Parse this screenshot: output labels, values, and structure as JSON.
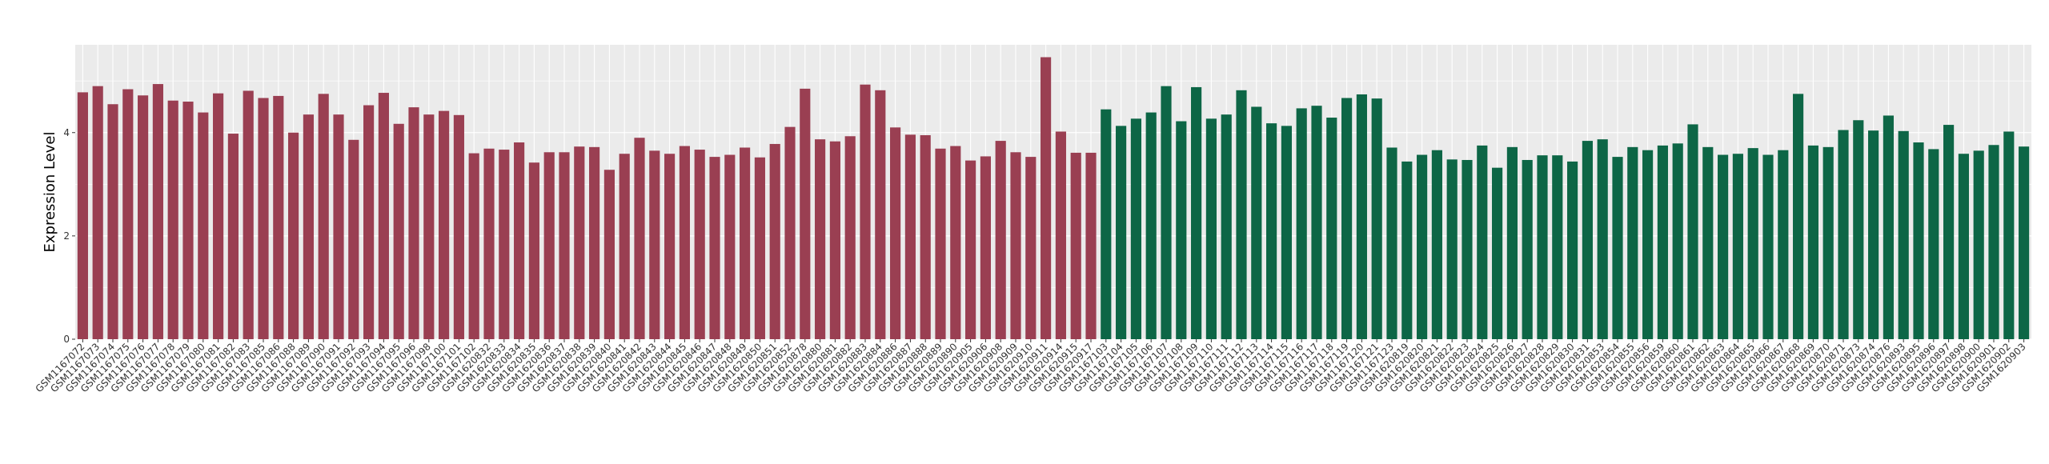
{
  "chart_data": {
    "type": "bar",
    "ylabel": "Expression Level",
    "ylim": [
      0,
      5.7
    ],
    "y_ticks": [
      0,
      2,
      4
    ],
    "y_tick_labels": [
      "0",
      "2",
      "4"
    ],
    "grid": true,
    "legend": "none",
    "panel_background": "#ebebeb",
    "gridline_color": "#ffffff",
    "series": [
      {
        "color": "#9a3f52",
        "categories": [
          "GSM1167072",
          "GSM1167073",
          "GSM1167074",
          "GSM1167075",
          "GSM1167076",
          "GSM1167077",
          "GSM1167078",
          "GSM1167079",
          "GSM1167080",
          "GSM1167081",
          "GSM1167082",
          "GSM1167083",
          "GSM1167085",
          "GSM1167086",
          "GSM1167088",
          "GSM1167089",
          "GSM1167090",
          "GSM1167091",
          "GSM1167092",
          "GSM1167093",
          "GSM1167094",
          "GSM1167095",
          "GSM1167096",
          "GSM1167098",
          "GSM1167100",
          "GSM1167101",
          "GSM1167102",
          "GSM1620832",
          "GSM1620833",
          "GSM1620834",
          "GSM1620835",
          "GSM1620836",
          "GSM1620837",
          "GSM1620838",
          "GSM1620839",
          "GSM1620840",
          "GSM1620841",
          "GSM1620842",
          "GSM1620843",
          "GSM1620844",
          "GSM1620845",
          "GSM1620846",
          "GSM1620847",
          "GSM1620848",
          "GSM1620849",
          "GSM1620850",
          "GSM1620851",
          "GSM1620852",
          "GSM1620878",
          "GSM1620880",
          "GSM1620881",
          "GSM1620882",
          "GSM1620883",
          "GSM1620884",
          "GSM1620886",
          "GSM1620887",
          "GSM1620888",
          "GSM1620889",
          "GSM1620890",
          "GSM1620905",
          "GSM1620906",
          "GSM1620908",
          "GSM1620909",
          "GSM1620910",
          "GSM1620911",
          "GSM1620914",
          "GSM1620915",
          "GSM1620917"
        ],
        "values": [
          4.78,
          4.9,
          4.55,
          4.84,
          4.72,
          4.94,
          4.62,
          4.6,
          4.39,
          4.76,
          3.98,
          4.81,
          4.67,
          4.71,
          4.0,
          4.35,
          4.75,
          4.35,
          3.86,
          4.53,
          4.77,
          4.17,
          4.49,
          4.35,
          4.42,
          4.34,
          3.6,
          3.69,
          3.67,
          3.81,
          3.42,
          3.62,
          3.62,
          3.73,
          3.72,
          3.28,
          3.59,
          3.9,
          3.65,
          3.59,
          3.74,
          3.67,
          3.53,
          3.57,
          3.71,
          3.52,
          3.78,
          4.11,
          4.85,
          3.87,
          3.83,
          3.93,
          4.93,
          4.82,
          4.1,
          3.96,
          3.95,
          3.69,
          3.74,
          3.46,
          3.54,
          3.84,
          3.62,
          3.53,
          5.46,
          4.02,
          3.61,
          3.61
        ]
      },
      {
        "color": "#0d6646",
        "categories": [
          "GSM1167103",
          "GSM1167104",
          "GSM1167105",
          "GSM1167106",
          "GSM1167107",
          "GSM1167108",
          "GSM1167109",
          "GSM1167110",
          "GSM1167111",
          "GSM1167112",
          "GSM1167113",
          "GSM1167114",
          "GSM1167115",
          "GSM1167116",
          "GSM1167117",
          "GSM1167118",
          "GSM1167119",
          "GSM1167120",
          "GSM1167121",
          "GSM1167123",
          "GSM1620819",
          "GSM1620820",
          "GSM1620821",
          "GSM1620822",
          "GSM1620823",
          "GSM1620824",
          "GSM1620825",
          "GSM1620826",
          "GSM1620827",
          "GSM1620828",
          "GSM1620829",
          "GSM1620830",
          "GSM1620831",
          "GSM1620853",
          "GSM1620854",
          "GSM1620855",
          "GSM1620856",
          "GSM1620859",
          "GSM1620860",
          "GSM1620861",
          "GSM1620862",
          "GSM1620863",
          "GSM1620864",
          "GSM1620865",
          "GSM1620866",
          "GSM1620867",
          "GSM1620868",
          "GSM1620869",
          "GSM1620870",
          "GSM1620871",
          "GSM1620873",
          "GSM1620874",
          "GSM1620876",
          "GSM1620893",
          "GSM1620895",
          "GSM1620896",
          "GSM1620897",
          "GSM1620898",
          "GSM1620900",
          "GSM1620901",
          "GSM1620902",
          "GSM1620903"
        ],
        "values": [
          4.45,
          4.13,
          4.27,
          4.39,
          4.9,
          4.22,
          4.88,
          4.27,
          4.35,
          4.82,
          4.5,
          4.18,
          4.13,
          4.47,
          4.52,
          4.29,
          4.67,
          4.74,
          4.66,
          3.71,
          3.44,
          3.57,
          3.66,
          3.48,
          3.47,
          3.75,
          3.32,
          3.72,
          3.47,
          3.56,
          3.56,
          3.44,
          3.84,
          3.87,
          3.53,
          3.72,
          3.66,
          3.75,
          3.79,
          4.16,
          3.72,
          3.57,
          3.59,
          3.7,
          3.57,
          3.66,
          4.75,
          3.75,
          3.72,
          4.05,
          4.24,
          4.04,
          4.33,
          4.03,
          3.81,
          3.68,
          4.15,
          3.59,
          3.65,
          3.76,
          4.02,
          3.73
        ]
      }
    ]
  }
}
